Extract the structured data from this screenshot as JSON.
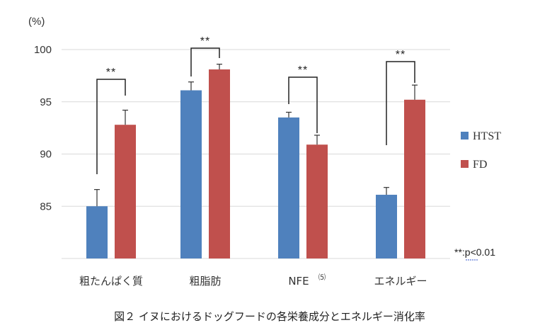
{
  "chart_data": {
    "type": "bar",
    "ylabel": "(%)",
    "ylim": [
      80,
      100
    ],
    "yticks": [
      85,
      90,
      95,
      100
    ],
    "ytick_labels": [
      "85",
      "90",
      "95",
      "100"
    ],
    "grid": true,
    "categories": [
      "粗たんぱく質",
      "粗脂肪",
      "NFE",
      "エネルギー"
    ],
    "category_superscripts": [
      "",
      "",
      "⑸",
      ""
    ],
    "series": [
      {
        "name": "HTST",
        "color": "#4f81bd",
        "values": [
          85.0,
          96.1,
          93.5,
          86.1
        ],
        "errors": [
          1.6,
          0.8,
          0.5,
          0.7
        ]
      },
      {
        "name": "FD",
        "color": "#c0504d",
        "values": [
          92.8,
          98.1,
          90.9,
          95.2
        ],
        "errors": [
          1.4,
          0.5,
          0.9,
          1.4
        ]
      }
    ],
    "significance": [
      "**",
      "**",
      "**",
      "**"
    ],
    "significance_note": "**:p<0.01",
    "legend_position": "right",
    "caption": "図２ イヌにおけるドッグフードの各栄養成分とエネルギー消化率"
  }
}
